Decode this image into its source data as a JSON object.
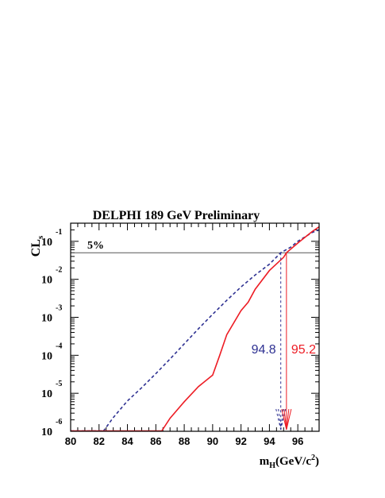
{
  "chart_data": {
    "type": "line",
    "title": "DELPHI 189 GeV Preliminary",
    "ylabel": {
      "main": "CL",
      "sub": "s"
    },
    "xlabel": {
      "m": "m",
      "h": "H",
      "open": "(GeV/c",
      "exp": "2",
      "close": ")"
    },
    "xlim": [
      80,
      97.5
    ],
    "ylim": [
      1e-06,
      0.3
    ],
    "yscale": "log",
    "grid": false,
    "x_ticks": [
      "80",
      "82",
      "84",
      "86",
      "88",
      "90",
      "92",
      "94",
      "96"
    ],
    "y_ticks": [
      {
        "value": 1e-06,
        "base": "10",
        "exp": "-6"
      },
      {
        "value": 1e-05,
        "base": "10",
        "exp": "-5"
      },
      {
        "value": 0.0001,
        "base": "10",
        "exp": "-4"
      },
      {
        "value": 0.001,
        "base": "10",
        "exp": "-3"
      },
      {
        "value": 0.01,
        "base": "10",
        "exp": "-2"
      },
      {
        "value": 0.1,
        "base": "10",
        "exp": "-1"
      }
    ],
    "threshold": {
      "value": 0.05,
      "label": "5%"
    },
    "series": [
      {
        "style": "dashed",
        "color": "#2e3192",
        "x": [
          82.3,
          83.0,
          84.0,
          85.0,
          86.0,
          87.0,
          88.0,
          89.0,
          90.0,
          91.0,
          92.0,
          93.0,
          94.0,
          94.8,
          95.5,
          96.0,
          97.0,
          97.5
        ],
        "y": [
          1e-06,
          2.3e-06,
          6.3e-06,
          1.4e-05,
          3.3e-05,
          8e-05,
          0.0002,
          0.0005,
          0.0012,
          0.0028,
          0.0063,
          0.013,
          0.025,
          0.05,
          0.07,
          0.1,
          0.17,
          0.2
        ]
      },
      {
        "style": "solid",
        "color": "#ed1c24",
        "x": [
          86.4,
          87.0,
          88.0,
          89.0,
          90.0,
          90.5,
          91.0,
          92.0,
          92.5,
          93.0,
          94.0,
          95.0,
          95.2,
          96.0,
          97.0,
          97.5
        ],
        "y": [
          1e-06,
          2.2e-06,
          6e-06,
          1.5e-05,
          3e-05,
          0.0001,
          0.00035,
          0.0015,
          0.0025,
          0.0055,
          0.017,
          0.038,
          0.05,
          0.09,
          0.18,
          0.24
        ]
      }
    ],
    "limits": [
      {
        "value": 94.8,
        "label": "94.8",
        "color": "#2e3192"
      },
      {
        "value": 95.2,
        "label": "95.2",
        "color": "#ed1c24"
      }
    ]
  }
}
